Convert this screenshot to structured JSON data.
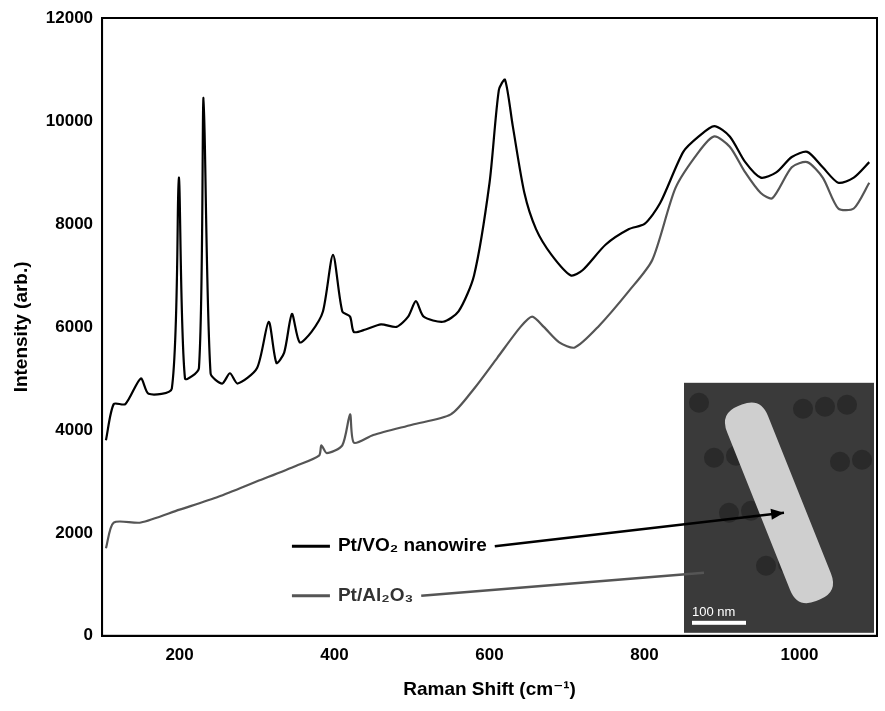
{
  "chart_data": {
    "type": "line",
    "x_label": "Raman Shift (cm⁻¹)",
    "y_label": "Intensity (arb.)",
    "xlim": [
      100,
      1100
    ],
    "xticks": [
      200,
      400,
      600,
      800,
      1000
    ],
    "ylim": [
      0,
      12000
    ],
    "yticks": [
      0,
      2000,
      4000,
      6000,
      8000,
      10000,
      12000
    ],
    "grid": false,
    "legend": "lower center",
    "annotations": [
      "100 nm"
    ],
    "series": [
      {
        "name": "Pt/VO₂ nanowire",
        "color": "#000000",
        "x": [
          105,
          115,
          130,
          150,
          160,
          190,
          199,
          207,
          225,
          231,
          240,
          255,
          265,
          275,
          300,
          315,
          325,
          335,
          345,
          355,
          370,
          385,
          398,
          410,
          420,
          425,
          440,
          460,
          480,
          495,
          505,
          515,
          540,
          560,
          580,
          600,
          612,
          620,
          630,
          645,
          660,
          680,
          705,
          720,
          750,
          780,
          800,
          820,
          850,
          870,
          890,
          910,
          930,
          950,
          970,
          990,
          1010,
          1030,
          1050,
          1070,
          1090
        ],
        "values": [
          3800,
          4500,
          4500,
          5000,
          4700,
          4800,
          8900,
          5000,
          5200,
          10450,
          5100,
          4900,
          5100,
          4900,
          5200,
          6100,
          5300,
          5500,
          6250,
          5700,
          5900,
          6300,
          7400,
          6300,
          6200,
          5900,
          5950,
          6050,
          6000,
          6200,
          6500,
          6200,
          6100,
          6300,
          7000,
          8800,
          10600,
          10800,
          9900,
          8600,
          7900,
          7400,
          7000,
          7100,
          7600,
          7900,
          8000,
          8400,
          9400,
          9700,
          9900,
          9700,
          9200,
          8900,
          9000,
          9300,
          9400,
          9100,
          8800,
          8900,
          9200
        ]
      },
      {
        "name": "Pt/Al₂O₃",
        "color": "#555555",
        "x": [
          105,
          115,
          150,
          200,
          250,
          300,
          350,
          380,
          383,
          390,
          410,
          420,
          425,
          450,
          500,
          550,
          580,
          610,
          640,
          655,
          670,
          690,
          710,
          740,
          780,
          810,
          840,
          870,
          890,
          910,
          930,
          950,
          965,
          990,
          1010,
          1030,
          1050,
          1070,
          1090
        ],
        "values": [
          1700,
          2200,
          2200,
          2450,
          2700,
          3000,
          3300,
          3500,
          3700,
          3550,
          3700,
          4300,
          3750,
          3900,
          4100,
          4300,
          4800,
          5400,
          6000,
          6200,
          6000,
          5700,
          5600,
          6000,
          6700,
          7300,
          8700,
          9400,
          9700,
          9500,
          9000,
          8600,
          8500,
          9100,
          9200,
          8900,
          8300,
          8300,
          8800
        ]
      }
    ]
  }
}
